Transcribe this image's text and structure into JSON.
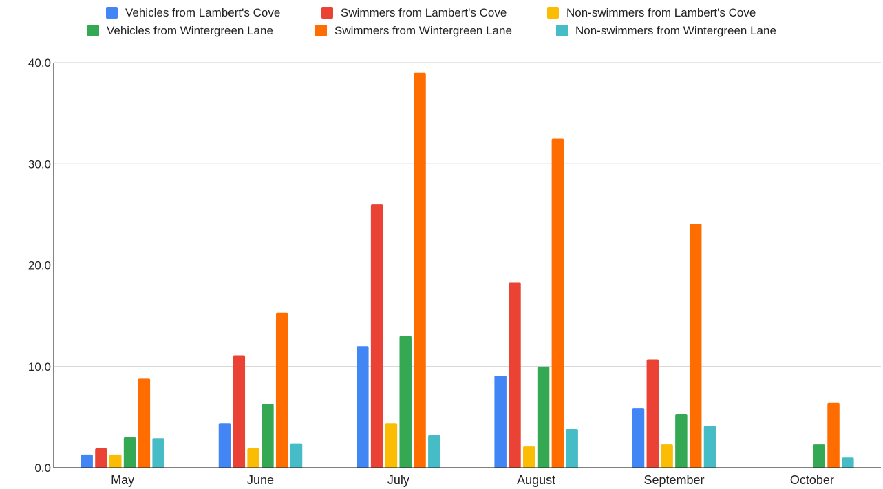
{
  "chart_data": {
    "type": "bar",
    "title": "",
    "xlabel": "",
    "ylabel": "",
    "categories": [
      "May",
      "June",
      "July",
      "August",
      "September",
      "October"
    ],
    "ylim": [
      0,
      40
    ],
    "yticks": [
      "0.0",
      "10.0",
      "20.0",
      "30.0",
      "40.0"
    ],
    "ytick_values": [
      0,
      10,
      20,
      30,
      40
    ],
    "grid": true,
    "legend_position": "top",
    "series": [
      {
        "name": "Vehicles from Lambert's Cove",
        "color": "#4285F4",
        "values": [
          1.3,
          4.4,
          12.0,
          9.1,
          5.9,
          null
        ]
      },
      {
        "name": "Swimmers from Lambert's Cove",
        "color": "#EA4335",
        "values": [
          1.9,
          11.1,
          26.0,
          18.3,
          10.7,
          null
        ]
      },
      {
        "name": "Non-swimmers from Lambert's Cove",
        "color": "#FBBC04",
        "values": [
          1.3,
          1.9,
          4.4,
          2.1,
          2.3,
          null
        ]
      },
      {
        "name": "Vehicles from Wintergreen Lane",
        "color": "#34A853",
        "values": [
          3.0,
          6.3,
          13.0,
          10.0,
          5.3,
          2.3
        ]
      },
      {
        "name": "Swimmers from Wintergreen Lane",
        "color": "#FF6D01",
        "values": [
          8.8,
          15.3,
          39.0,
          32.5,
          24.1,
          6.4
        ]
      },
      {
        "name": "Non-swimmers from Wintergreen Lane",
        "color": "#46BDC6",
        "values": [
          2.9,
          2.4,
          3.2,
          3.8,
          4.1,
          1.0
        ]
      }
    ]
  }
}
